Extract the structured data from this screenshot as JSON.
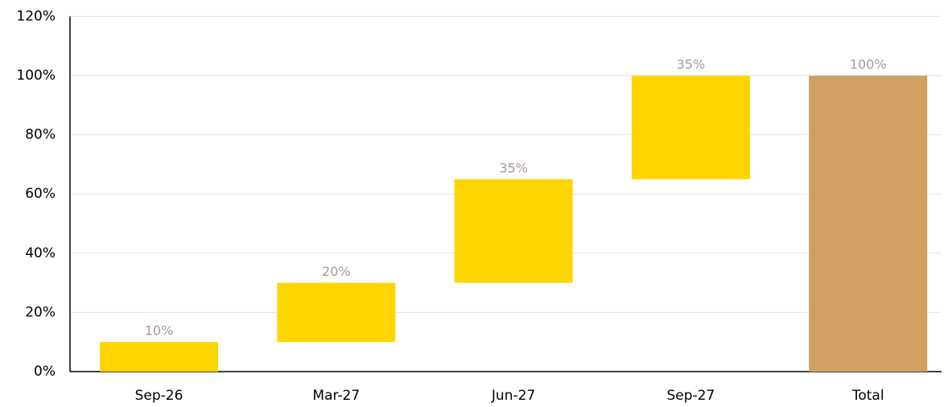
{
  "chart_data": {
    "type": "waterfall",
    "categories": [
      "Sep-26",
      "Mar-27",
      "Jun-27",
      "Sep-27",
      "Total"
    ],
    "values": [
      10,
      20,
      35,
      35,
      100
    ],
    "value_labels": [
      "10%",
      "20%",
      "35%",
      "35%",
      "100%"
    ],
    "totals": [
      false,
      false,
      false,
      false,
      true
    ],
    "color": "#FFD500",
    "total_color": "#CFA061",
    "label_color": "#A8989A",
    "ylim": [
      0,
      120
    ],
    "yticks": [
      {
        "value": 0,
        "label": "0%"
      },
      {
        "value": 20,
        "label": "20%"
      },
      {
        "value": 40,
        "label": "40%"
      },
      {
        "value": 60,
        "label": "60%"
      },
      {
        "value": 80,
        "label": "80%"
      },
      {
        "value": 100,
        "label": "100%"
      },
      {
        "value": 120,
        "label": "120%"
      }
    ],
    "grid": true
  }
}
